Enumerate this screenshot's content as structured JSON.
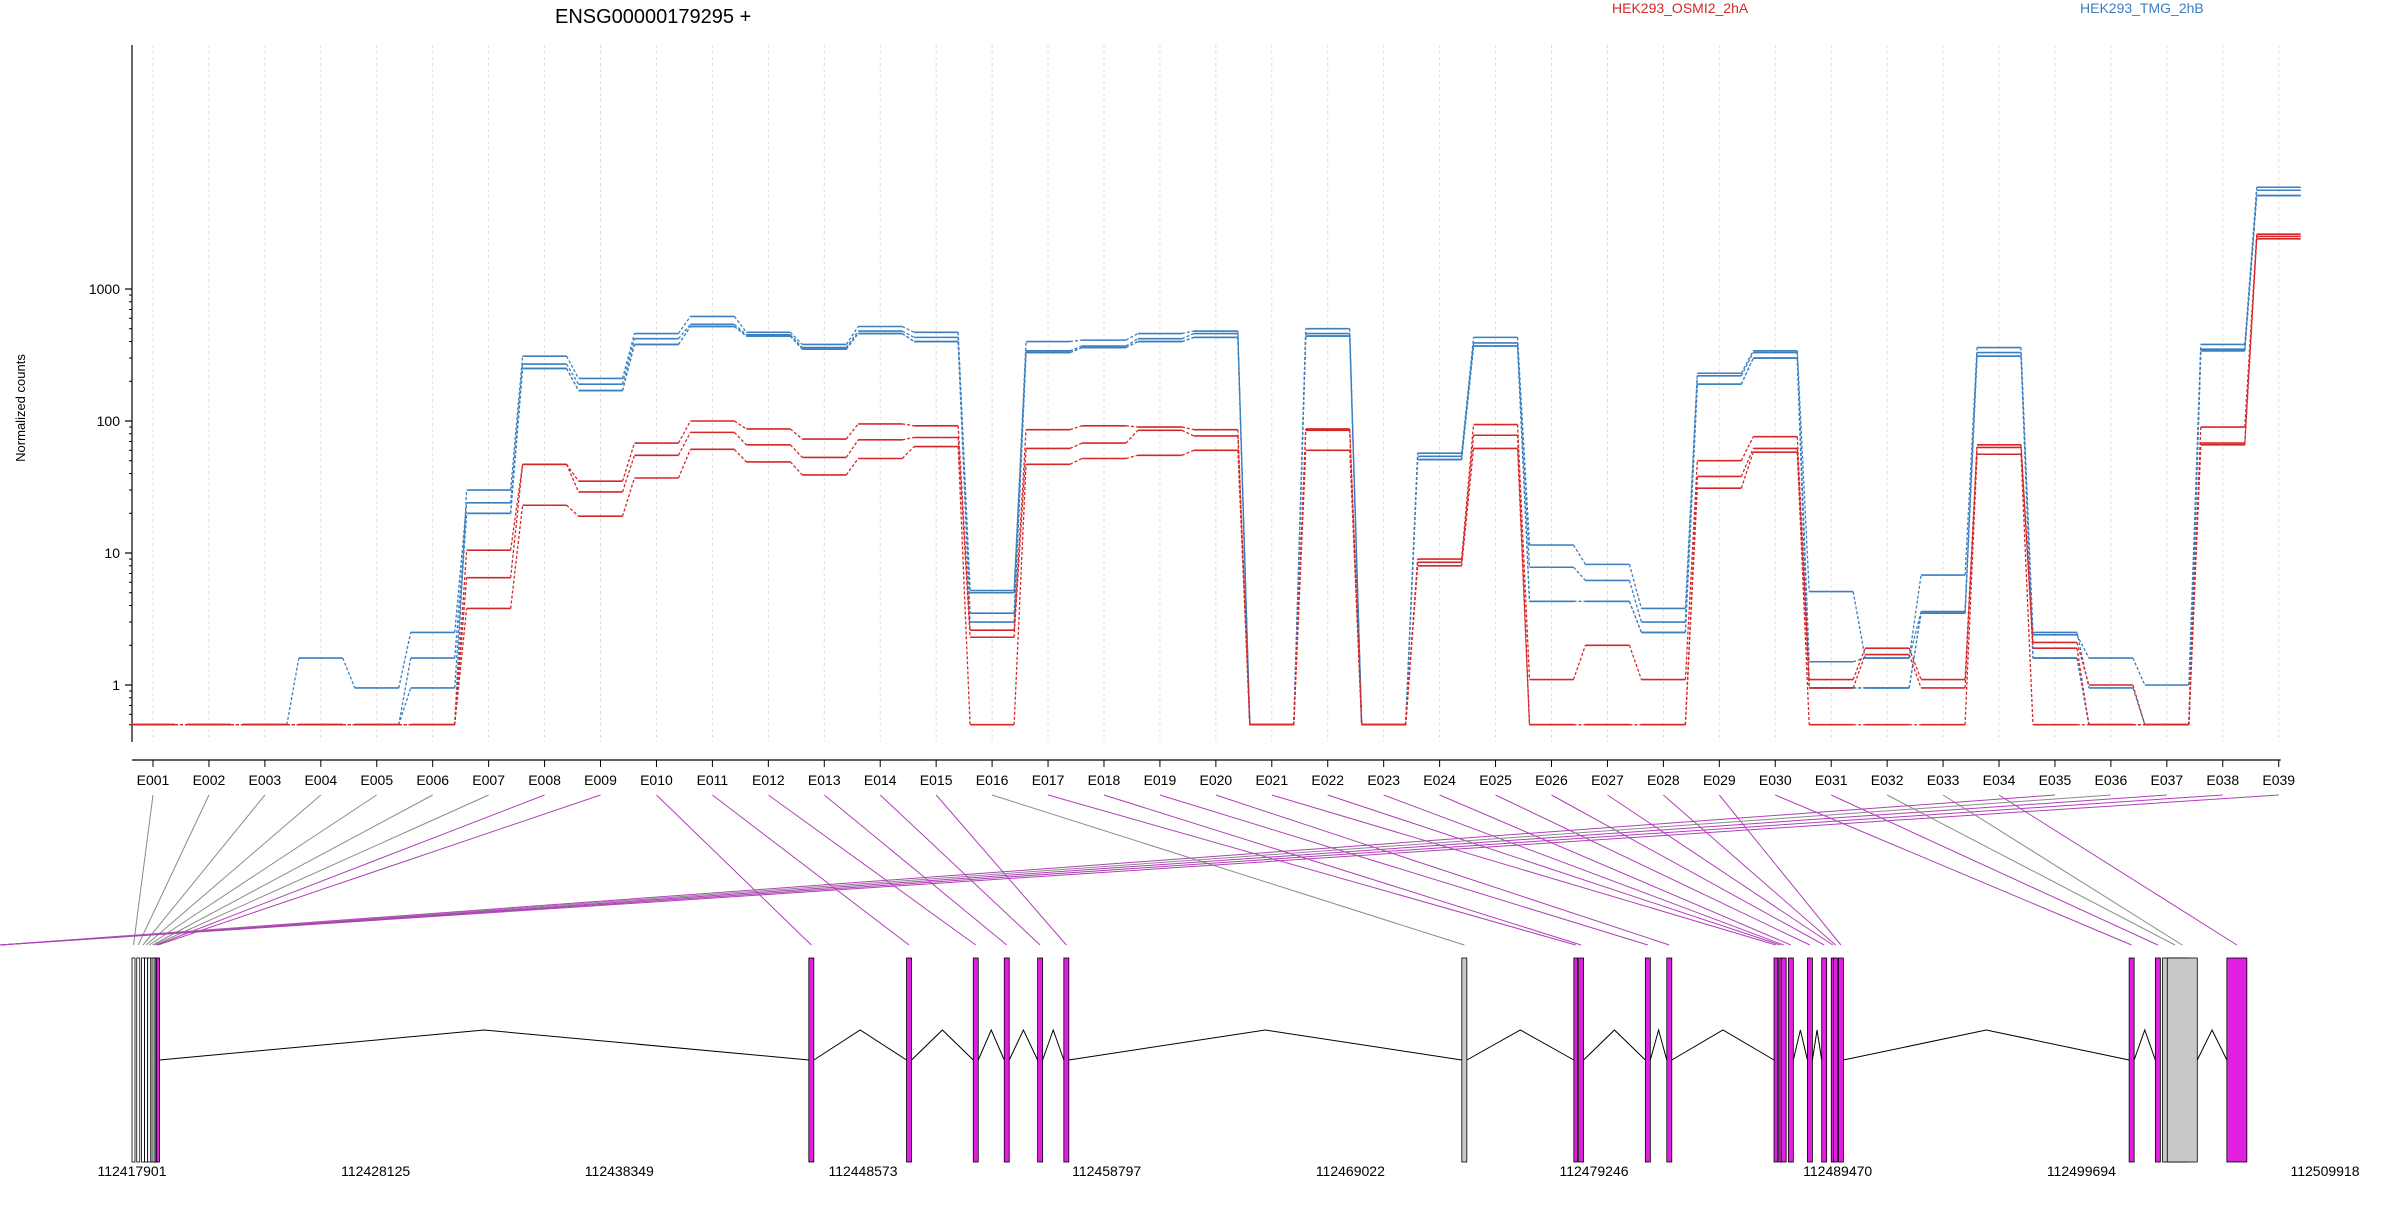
{
  "chart_data": {
    "type": "line",
    "title": "ENSG00000179295 +",
    "ylabel": "Normalized counts",
    "yscale": "log",
    "ylim": [
      0.5,
      6000
    ],
    "yticks": [
      1,
      10,
      100,
      1000
    ],
    "ytick_labels": [
      "1",
      "10",
      "100",
      "1000"
    ],
    "categories": [
      "E001",
      "E002",
      "E003",
      "E004",
      "E005",
      "E006",
      "E007",
      "E008",
      "E009",
      "E010",
      "E011",
      "E012",
      "E013",
      "E014",
      "E015",
      "E016",
      "E017",
      "E018",
      "E019",
      "E020",
      "E021",
      "E022",
      "E023",
      "E024",
      "E025",
      "E026",
      "E027",
      "E028",
      "E029",
      "E030",
      "E031",
      "E032",
      "E033",
      "E034",
      "E035",
      "E036",
      "E037",
      "E038",
      "E039"
    ],
    "legend": [
      {
        "name": "HEK293_OSMI2_2hA",
        "color": "#d62728"
      },
      {
        "name": "HEK293_TMG_2hB",
        "color": "#3a7fbf"
      }
    ],
    "series": [
      {
        "group": "HEK293_TMG_2hB",
        "color": "#3a7fbf",
        "values": [
          0.5,
          0.5,
          0.5,
          0.5,
          0.5,
          0.5,
          30,
          310,
          210,
          460,
          620,
          470,
          380,
          520,
          470,
          5.2,
          400,
          410,
          460,
          480,
          0.5,
          500,
          0.5,
          57,
          430,
          11.5,
          8.2,
          3.8,
          230,
          340,
          5.1,
          1.6,
          6.8,
          360,
          2.4,
          1.6,
          1.0,
          380,
          5900
        ]
      },
      {
        "group": "HEK293_TMG_2hB",
        "color": "#3a7fbf",
        "values": [
          0.5,
          0.5,
          0.5,
          1.6,
          0.95,
          2.5,
          24,
          270,
          190,
          420,
          540,
          450,
          360,
          480,
          430,
          5.0,
          340,
          370,
          420,
          460,
          0.5,
          460,
          0.5,
          54,
          390,
          7.8,
          6.2,
          3.0,
          220,
          330,
          1.5,
          1.6,
          3.6,
          330,
          2.5,
          0.95,
          0.5,
          350,
          5600
        ]
      },
      {
        "group": "HEK293_TMG_2hB",
        "color": "#3a7fbf",
        "values": [
          0.5,
          0.5,
          0.5,
          0.5,
          0.5,
          1.6,
          20,
          250,
          170,
          380,
          520,
          440,
          350,
          460,
          400,
          3.5,
          330,
          360,
          400,
          430,
          0.5,
          440,
          0.5,
          51,
          370,
          4.3,
          4.3,
          2.5,
          190,
          300,
          0.95,
          0.95,
          3.5,
          310,
          1.6,
          0.5,
          0.5,
          340,
          5100
        ]
      },
      {
        "group": "HEK293_TMG_2hB",
        "color": "#3a7fbf",
        "values": [
          0.5,
          0.5,
          0.5,
          0.5,
          0.5,
          0.95,
          20,
          250,
          170,
          380,
          520,
          440,
          350,
          460,
          400,
          3.0,
          330,
          360,
          400,
          430,
          0.5,
          440,
          0.5,
          51,
          370,
          4.3,
          4.3,
          2.5,
          190,
          300,
          0.95,
          0.95,
          3.5,
          310,
          1.6,
          0.5,
          0.5,
          340,
          5100
        ]
      },
      {
        "group": "HEK293_OSMI2_2hA",
        "color": "#d62728",
        "values": [
          0.5,
          0.5,
          0.5,
          0.5,
          0.5,
          0.5,
          10.5,
          47,
          35,
          68,
          100,
          87,
          73,
          95,
          92,
          2.6,
          86,
          92,
          90,
          86,
          0.5,
          87,
          0.5,
          9,
          94,
          1.1,
          2.0,
          1.1,
          50,
          76,
          1.1,
          1.9,
          1.1,
          66,
          2.1,
          1.0,
          0.5,
          90,
          2600
        ]
      },
      {
        "group": "HEK293_OSMI2_2hA",
        "color": "#d62728",
        "values": [
          0.5,
          0.5,
          0.5,
          0.5,
          0.5,
          0.5,
          6.5,
          47,
          29,
          55,
          82,
          66,
          53,
          72,
          75,
          2.3,
          62,
          68,
          85,
          77,
          0.5,
          85,
          0.5,
          8.5,
          78,
          0.5,
          0.5,
          0.5,
          38,
          62,
          0.95,
          1.7,
          0.95,
          63,
          1.9,
          0.5,
          0.5,
          68,
          2500
        ]
      },
      {
        "group": "HEK293_OSMI2_2hA",
        "color": "#d62728",
        "values": [
          0.5,
          0.5,
          0.5,
          0.5,
          0.5,
          0.5,
          3.8,
          23,
          19,
          37,
          61,
          49,
          39,
          52,
          64,
          0.5,
          47,
          52,
          55,
          60,
          0.5,
          60,
          0.5,
          8,
          62,
          0.5,
          0.5,
          0.5,
          31,
          58,
          0.5,
          0.5,
          0.5,
          56,
          0.5,
          0.5,
          0.5,
          66,
          2400
        ]
      }
    ],
    "gene_model": {
      "coordinate_labels": [
        "112417901",
        "112428125",
        "112438349",
        "112448573",
        "112458797",
        "112469022",
        "112479246",
        "112489470",
        "112499694",
        "112509918"
      ],
      "coordinates": [
        112417901,
        112428125,
        112438349,
        112448573,
        112458797,
        112469022,
        112479246,
        112489470,
        112499694,
        112509918
      ],
      "significant_color": "#e020e0",
      "normal_color": "#c8c8c8",
      "exon_start_coordinates": [
        112417901,
        112418100,
        112418300,
        112418430,
        112418560,
        112418700,
        112418780,
        112418860,
        112418930,
        112446300,
        112450400,
        112453200,
        112454500,
        112455900,
        112457000,
        112473700,
        112478400,
        112478600,
        112481400,
        112482300,
        112486800,
        112487000,
        112487100,
        112487400,
        112488200,
        112488800,
        112489200,
        112489300,
        112489500,
        112501700,
        112502800,
        112503100,
        112503300,
        112505800
      ],
      "significant_exons": [
        "E008",
        "E009",
        "E010",
        "E011",
        "E012",
        "E013",
        "E014",
        "E015",
        "E017",
        "E018",
        "E019",
        "E020",
        "E021",
        "E022",
        "E023",
        "E024",
        "E025",
        "E026",
        "E027",
        "E028",
        "E029",
        "E030",
        "E031",
        "E034",
        "E035",
        "E037",
        "E038",
        "E039"
      ]
    }
  }
}
